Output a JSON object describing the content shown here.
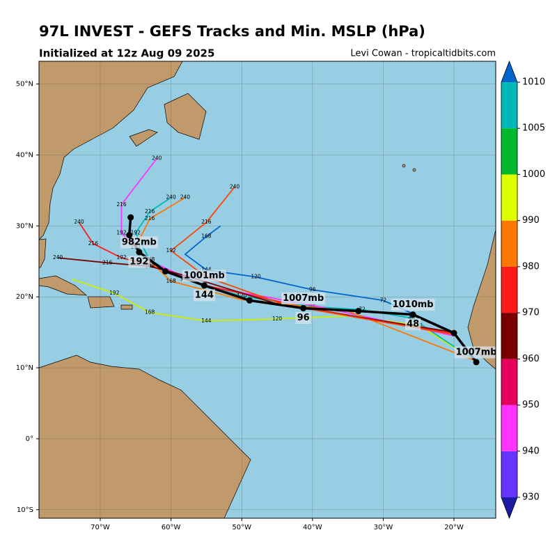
{
  "title": "97L INVEST - GEFS Tracks and Min. MSLP (hPa)",
  "subtitle": "Initialized at 12z Aug 09 2025",
  "credit": "Levi Cowan - tropicaltidbits.com",
  "map": {
    "lonlim": [
      -78.66,
      -14.1
    ],
    "latlim": [
      -11.2,
      53.2
    ],
    "xticks": [
      {
        "value": -70,
        "label": "70°W"
      },
      {
        "value": -60,
        "label": "60°W"
      },
      {
        "value": -50,
        "label": "50°W"
      },
      {
        "value": -40,
        "label": "40°W"
      },
      {
        "value": -30,
        "label": "30°W"
      },
      {
        "value": -20,
        "label": "20°W"
      }
    ],
    "yticks": [
      {
        "value": 50,
        "label": "50°N"
      },
      {
        "value": 40,
        "label": "40°N"
      },
      {
        "value": 30,
        "label": "30°N"
      },
      {
        "value": 20,
        "label": "20°N"
      },
      {
        "value": 10,
        "label": "10°N"
      },
      {
        "value": 0,
        "label": "0°"
      },
      {
        "value": -10,
        "label": "10°S"
      }
    ],
    "grid": true,
    "ocean_color": "#97cee3",
    "land_color": "#c09a6b"
  },
  "colorbar": {
    "ticks": [
      930,
      940,
      950,
      960,
      970,
      980,
      990,
      1000,
      1005,
      1010
    ],
    "colors": [
      "#6633ff",
      "#ff33ff",
      "#e6005c",
      "#7a0000",
      "#ff1a1a",
      "#ff7700",
      "#ddff00",
      "#00b82e",
      "#00b8b8"
    ],
    "under_color": "#1c1ca0",
    "over_color": "#0066cc"
  },
  "ensemble": [
    {
      "color": "#ccee00",
      "points": [
        {
          "lon": -17,
          "lat": 11
        },
        {
          "lon": -25,
          "lat": 16
        },
        {
          "lon": -35,
          "lat": 17.3
        },
        {
          "lon": -45,
          "lat": 16.9,
          "hour": 120
        },
        {
          "lon": -55,
          "lat": 16.6,
          "hour": 144
        },
        {
          "lon": -63,
          "lat": 17.8,
          "hour": 168
        },
        {
          "lon": -68,
          "lat": 20.5,
          "hour": 192
        },
        {
          "lon": -74,
          "lat": 22.5
        }
      ]
    },
    {
      "color": "#00b8b8",
      "points": [
        {
          "lon": -17,
          "lat": 11
        },
        {
          "lon": -26,
          "lat": 17,
          "hour": 48
        },
        {
          "lon": -33,
          "lat": 18.2,
          "hour": 72
        },
        {
          "lon": -40,
          "lat": 18.6,
          "hour": 96
        },
        {
          "lon": -50,
          "lat": 20.1,
          "hour": 120
        },
        {
          "lon": -58,
          "lat": 22.5,
          "hour": 144
        },
        {
          "lon": -63,
          "lat": 25.2,
          "hour": 168
        },
        {
          "lon": -65,
          "lat": 29,
          "hour": 192
        },
        {
          "lon": -63,
          "lat": 32,
          "hour": 216
        },
        {
          "lon": -60,
          "lat": 34,
          "hour": 240
        }
      ]
    },
    {
      "color": "#0066cc",
      "points": [
        {
          "lon": -20,
          "lat": 15
        },
        {
          "lon": -30,
          "lat": 19.5,
          "hour": 72
        },
        {
          "lon": -40,
          "lat": 21,
          "hour": 96
        },
        {
          "lon": -48,
          "lat": 22.8,
          "hour": 120
        },
        {
          "lon": -55,
          "lat": 23.8,
          "hour": 144
        },
        {
          "lon": -58,
          "lat": 26
        },
        {
          "lon": -55,
          "lat": 28.5,
          "hour": 168
        },
        {
          "lon": -53,
          "lat": 30
        }
      ]
    },
    {
      "color": "#ff33ff",
      "points": [
        {
          "lon": -20,
          "lat": 14.5
        },
        {
          "lon": -40,
          "lat": 18.8
        },
        {
          "lon": -55,
          "lat": 21.5
        },
        {
          "lon": -63,
          "lat": 25
        },
        {
          "lon": -67,
          "lat": 29,
          "hour": 192
        },
        {
          "lon": -67,
          "lat": 33,
          "hour": 216
        },
        {
          "lon": -62,
          "lat": 39.5,
          "hour": 240
        }
      ]
    },
    {
      "color": "#ff1a1a",
      "points": [
        {
          "lon": -20,
          "lat": 14.8
        },
        {
          "lon": -40,
          "lat": 18.3
        },
        {
          "lon": -56,
          "lat": 21.8
        },
        {
          "lon": -63,
          "lat": 24.5,
          "hour": 168
        },
        {
          "lon": -67,
          "lat": 25.5,
          "hour": 192
        },
        {
          "lon": -71,
          "lat": 27.5,
          "hour": 216
        },
        {
          "lon": -73,
          "lat": 30.5,
          "hour": 240
        }
      ]
    },
    {
      "color": "#ff7700",
      "points": [
        {
          "lon": -17,
          "lat": 11
        },
        {
          "lon": -35,
          "lat": 18
        },
        {
          "lon": -50,
          "lat": 19.6
        },
        {
          "lon": -60,
          "lat": 22.2,
          "hour": 168
        },
        {
          "lon": -65,
          "lat": 27,
          "hour": 192
        },
        {
          "lon": -63,
          "lat": 31,
          "hour": 216
        },
        {
          "lon": -58,
          "lat": 34,
          "hour": 240
        }
      ]
    },
    {
      "color": "#7a0000",
      "points": [
        {
          "lon": -20,
          "lat": 15
        },
        {
          "lon": -45,
          "lat": 19
        },
        {
          "lon": -58,
          "lat": 23
        },
        {
          "lon": -63,
          "lat": 24.3,
          "hour": 192
        },
        {
          "lon": -69,
          "lat": 24.8,
          "hour": 216
        },
        {
          "lon": -76,
          "lat": 25.5,
          "hour": 240
        }
      ]
    },
    {
      "color": "#ff4400",
      "points": [
        {
          "lon": -20,
          "lat": 14.7
        },
        {
          "lon": -44,
          "lat": 18.9
        },
        {
          "lon": -55,
          "lat": 22.8
        },
        {
          "lon": -60,
          "lat": 26.5,
          "hour": 192
        },
        {
          "lon": -55,
          "lat": 30.5,
          "hour": 216
        },
        {
          "lon": -51,
          "lat": 35.5,
          "hour": 240
        }
      ]
    }
  ],
  "mean_track": [
    {
      "lon": -16.85,
      "lat": 10.8,
      "mslp": "1007mb"
    },
    {
      "lon": -20,
      "lat": 14.9
    },
    {
      "lon": -25.8,
      "lat": 17.5,
      "hour": 48,
      "mslp": "1010mb"
    },
    {
      "lon": -33.5,
      "lat": 18
    },
    {
      "lon": -41.3,
      "lat": 18.4,
      "hour": 96,
      "mslp": "1007mb"
    },
    {
      "lon": -48.9,
      "lat": 19.5
    },
    {
      "lon": -55.3,
      "lat": 21.6,
      "hour": 144,
      "mslp": "1001mb"
    },
    {
      "lon": -60.8,
      "lat": 23.6
    },
    {
      "lon": -64.5,
      "lat": 26.3,
      "hour": 192,
      "mslp": "982mb"
    },
    {
      "lon": -65.9,
      "lat": 28.7
    },
    {
      "lon": -65.7,
      "lat": 31.2
    }
  ]
}
